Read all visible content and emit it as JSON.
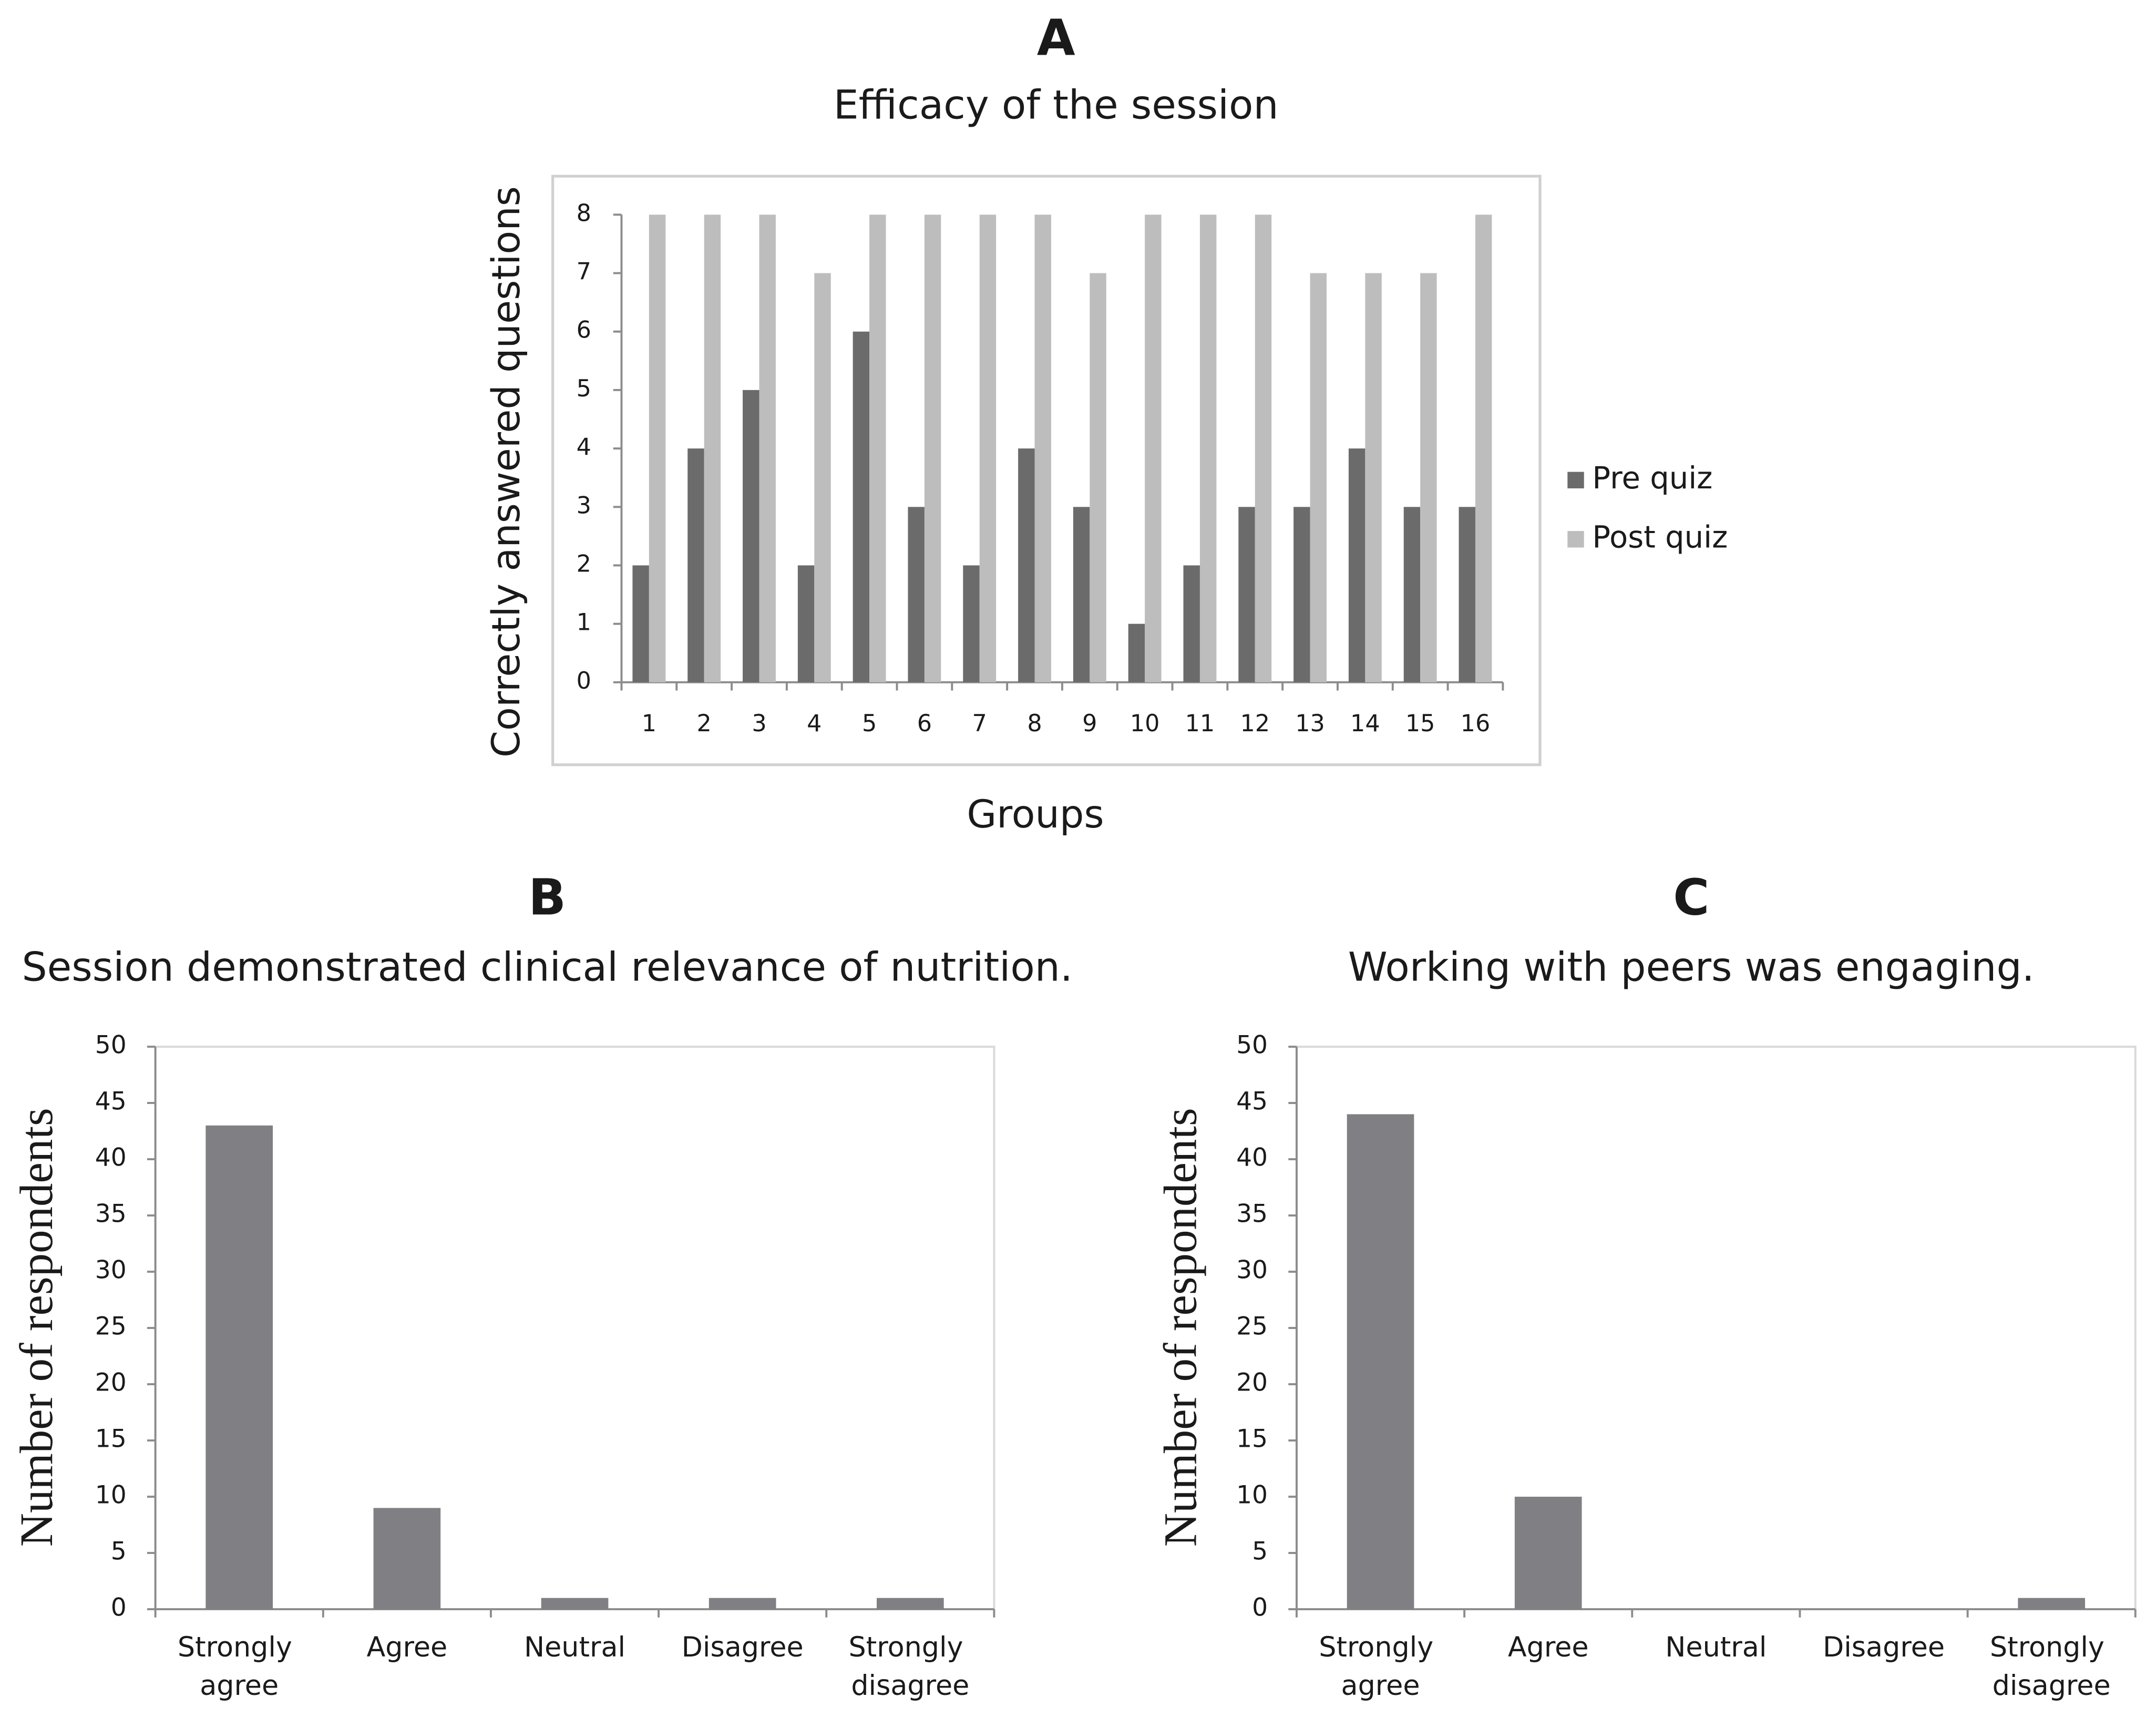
{
  "chart_data": [
    {
      "type": "bar",
      "panel": "A",
      "title": "Efficacy of the session",
      "xlabel": "Groups",
      "ylabel": "Correctly answered questions",
      "categories": [
        "1",
        "2",
        "3",
        "4",
        "5",
        "6",
        "7",
        "8",
        "9",
        "10",
        "11",
        "12",
        "13",
        "14",
        "15",
        "16"
      ],
      "series": [
        {
          "name": "Pre quiz",
          "color": "#6b6b6b",
          "values": [
            2,
            4,
            5,
            2,
            6,
            3,
            2,
            4,
            3,
            1,
            2,
            3,
            3,
            4,
            3,
            3
          ]
        },
        {
          "name": "Post quiz",
          "color": "#bdbdbd",
          "values": [
            8,
            8,
            8,
            7,
            8,
            8,
            8,
            8,
            7,
            8,
            8,
            8,
            7,
            7,
            7,
            8
          ]
        }
      ],
      "ylim": [
        0,
        8
      ],
      "yticks": [
        0,
        1,
        2,
        3,
        4,
        5,
        6,
        7,
        8
      ],
      "legend": "right",
      "grid": false
    },
    {
      "type": "bar",
      "panel": "B",
      "title": "Session demonstrated clinical relevance of nutrition.",
      "ylabel": "Number of respondents",
      "categories": [
        "Strongly agree",
        "Agree",
        "Neutral",
        "Disagree",
        "Strongly disagree"
      ],
      "values": [
        43,
        9,
        1,
        1,
        1
      ],
      "color": "#808084",
      "ylim": [
        0,
        50
      ],
      "yticks": [
        0,
        5,
        10,
        15,
        20,
        25,
        30,
        35,
        40,
        45,
        50
      ],
      "grid": false
    },
    {
      "type": "bar",
      "panel": "C",
      "title": "Working with peers was engaging.",
      "ylabel": "Number of respondents",
      "categories": [
        "Strongly agree",
        "Agree",
        "Neutral",
        "Disagree",
        "Strongly disagree"
      ],
      "values": [
        44,
        10,
        0,
        0,
        1
      ],
      "color": "#808084",
      "ylim": [
        0,
        50
      ],
      "yticks": [
        0,
        5,
        10,
        15,
        20,
        25,
        30,
        35,
        40,
        45,
        50
      ],
      "grid": false
    }
  ]
}
